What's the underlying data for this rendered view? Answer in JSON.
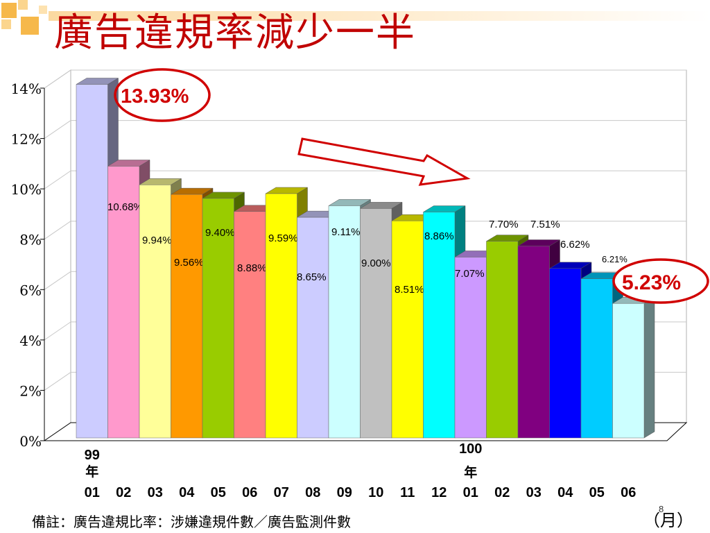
{
  "slide": {
    "title": "廣告違規率減少一半",
    "footnote": "備註：廣告違規比率：涉嫌違規件數／廣告監測件數",
    "unit": "（月）",
    "page_number": "8"
  },
  "chart_data": {
    "type": "bar",
    "title": "廣告違規率減少一半",
    "xlabel": "（月）",
    "ylabel": "",
    "ylim": [
      0,
      14
    ],
    "yticks": [
      "0%",
      "2%",
      "4%",
      "6%",
      "8%",
      "10%",
      "12%",
      "14%"
    ],
    "year_labels": [
      {
        "index": 0,
        "text": "99年"
      },
      {
        "index": 12,
        "text": "100年"
      }
    ],
    "categories": [
      "01",
      "02",
      "03",
      "04",
      "05",
      "06",
      "07",
      "08",
      "09",
      "10",
      "11",
      "12",
      "01",
      "02",
      "03",
      "04",
      "05",
      "06"
    ],
    "values": [
      13.93,
      10.68,
      9.94,
      9.56,
      9.4,
      8.88,
      9.59,
      8.65,
      9.11,
      9.0,
      8.51,
      8.86,
      7.07,
      7.7,
      7.51,
      6.62,
      6.21,
      5.23
    ],
    "data_labels": [
      "13.93%",
      "10.68%",
      "9.94%",
      "9.56%",
      "9.40%",
      "8.88%",
      "9.59%",
      "8.65%",
      "9.11%",
      "9.00%",
      "8.51%",
      "8.86%",
      "7.07%",
      "7.70%",
      "7.51%",
      "6.62%",
      "6.21%",
      "5.23%"
    ],
    "colors": [
      "#ccccff",
      "#ff99cc",
      "#ffff99",
      "#ff9900",
      "#99cc00",
      "#ff8080",
      "#ffff00",
      "#ccccff",
      "#ccffff",
      "#c0c0c0",
      "#ffff00",
      "#00ffff",
      "#cc99ff",
      "#99cc00",
      "#800080",
      "#0000ff",
      "#00ccff",
      "#ccffff"
    ],
    "highlight_labels": [
      0,
      17
    ],
    "highlight_color": "#d00000",
    "grid": true,
    "legend": "none"
  }
}
